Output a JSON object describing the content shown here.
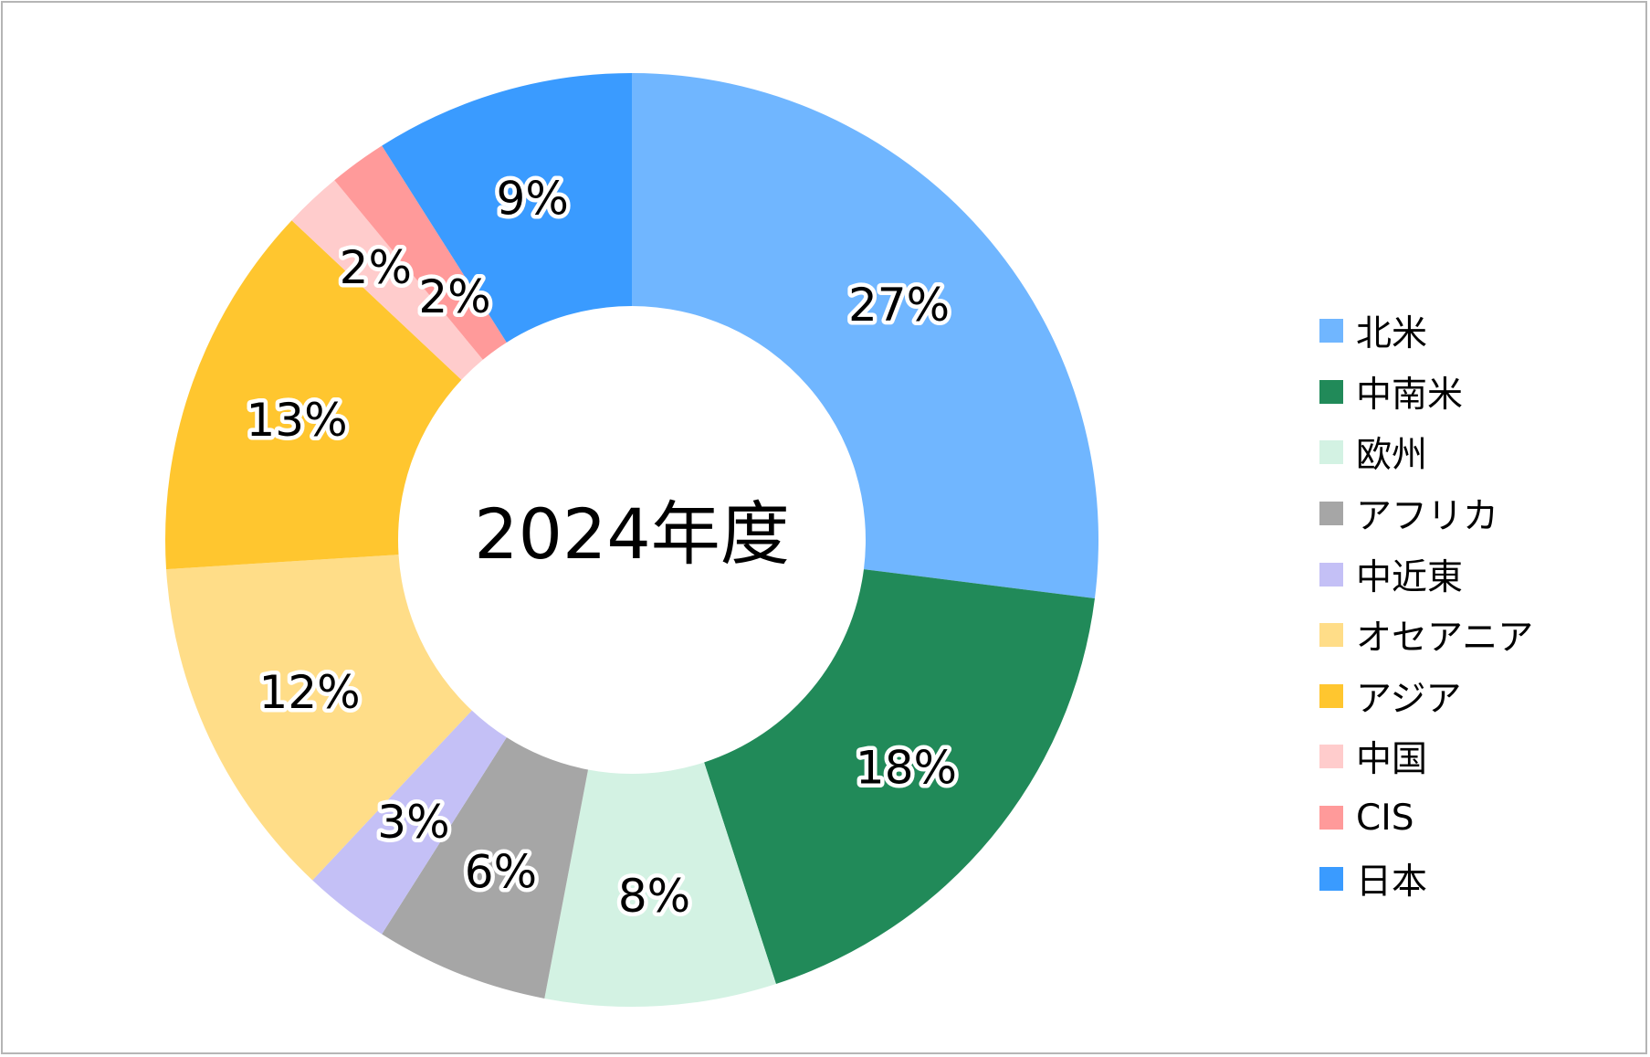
{
  "chart_data": {
    "type": "pie",
    "variant": "donut",
    "center_label": "2024年度",
    "legend_position": "right",
    "slices": [
      {
        "name": "北米",
        "value": 27,
        "label": "27%",
        "color": "#70b6ff"
      },
      {
        "name": "中南米",
        "value": 18,
        "label": "18%",
        "color": "#218a59"
      },
      {
        "name": "欧州",
        "value": 8,
        "label": "8%",
        "color": "#d3f2e3"
      },
      {
        "name": "アフリカ",
        "value": 6,
        "label": "6%",
        "color": "#a6a6a6"
      },
      {
        "name": "中近東",
        "value": 3,
        "label": "3%",
        "color": "#c4c0f6"
      },
      {
        "name": "オセアニア",
        "value": 12,
        "label": "12%",
        "color": "#ffdd88"
      },
      {
        "name": "アジア",
        "value": 13,
        "label": "13%",
        "color": "#ffc62f"
      },
      {
        "name": "中国",
        "value": 2,
        "label": "2%",
        "color": "#ffcccc"
      },
      {
        "name": "CIS",
        "value": 2,
        "label": "2%",
        "color": "#ff9a9a"
      },
      {
        "name": "日本",
        "value": 9,
        "label": "9%",
        "color": "#3a9bff"
      }
    ]
  }
}
